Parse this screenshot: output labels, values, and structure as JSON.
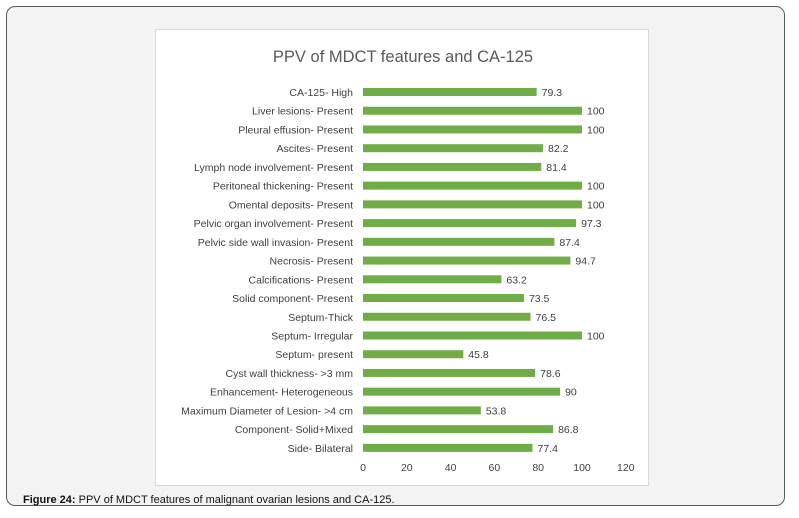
{
  "chart_data": {
    "type": "bar",
    "orientation": "horizontal",
    "title": "PPV of MDCT features and CA-125",
    "xlabel": "",
    "ylabel": "",
    "xlim": [
      0,
      120
    ],
    "ticks": [
      0,
      20,
      40,
      60,
      80,
      100,
      120
    ],
    "grid": false,
    "legend": "none",
    "bar_color": "#70ad47",
    "categories": [
      "CA-125- High",
      "Liver lesions- Present",
      "Pleural effusion- Present",
      "Ascites- Present",
      "Lymph node involvement- Present",
      "Peritoneal thickening- Present",
      "Omental deposits- Present",
      "Pelvic organ involvement- Present",
      "Pelvic side wall invasion- Present",
      "Necrosis- Present",
      "Calcifications- Present",
      "Solid component- Present",
      "Septum-Thick",
      "Septum- Irregular",
      "Septum- present",
      "Cyst wall thickness- >3 mm",
      "Enhancement- Heterogeneous",
      "Maximum Diameter of Lesion- >4 cm",
      "Component- Solid+Mixed",
      "Side- Bilateral"
    ],
    "values": [
      79.3,
      100,
      100,
      82.2,
      81.4,
      100,
      100,
      97.3,
      87.4,
      94.7,
      63.2,
      73.5,
      76.5,
      100,
      45.8,
      78.6,
      90,
      53.8,
      86.8,
      77.4
    ],
    "value_labels": [
      "79.3",
      "100",
      "100",
      "82.2",
      "81.4",
      "100",
      "100",
      "97.3",
      "87.4",
      "94.7",
      "63.2",
      "73.5",
      "76.5",
      "100",
      "45.8",
      "78.6",
      "90",
      "53.8",
      "86.8",
      "77.4"
    ]
  },
  "caption": {
    "label": "Figure 24:",
    "text": " PPV of MDCT features of malignant ovarian lesions and CA-125."
  }
}
